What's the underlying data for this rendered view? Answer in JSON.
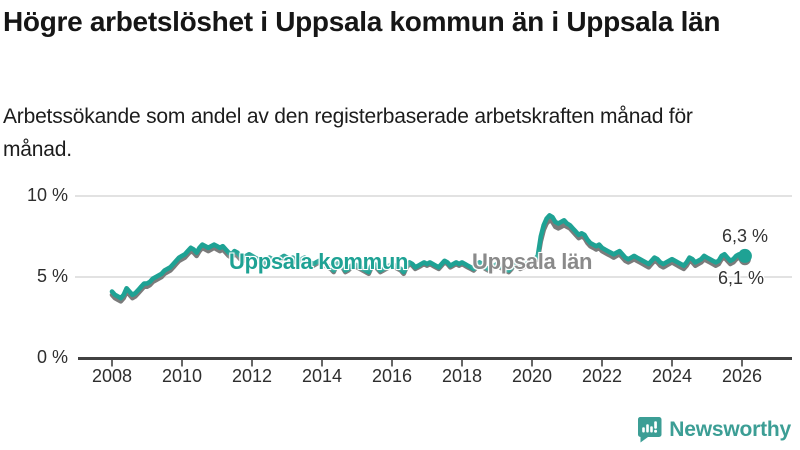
{
  "header": {
    "title": "Högre arbetslöshet i Uppsala kommun än i Uppsala län",
    "subtitle": "Arbetssökande som andel av den registerbaserade arbetskraften månad för månad."
  },
  "chart_data": {
    "type": "line",
    "x_start": "2008-01",
    "x_end": "2026-02",
    "x_frequency": "monthly",
    "ylim": [
      0,
      10.8
    ],
    "grid": "horizontal",
    "unit": "%",
    "y_ticks": [
      {
        "label": "10 %",
        "value": 10
      },
      {
        "label": "5 %",
        "value": 5
      },
      {
        "label": "0 %",
        "value": 0
      }
    ],
    "x_ticks": [
      {
        "label": "2008",
        "year": 2008
      },
      {
        "label": "2010",
        "year": 2010
      },
      {
        "label": "2012",
        "year": 2012
      },
      {
        "label": "2014",
        "year": 2014
      },
      {
        "label": "2016",
        "year": 2016
      },
      {
        "label": "2018",
        "year": 2018
      },
      {
        "label": "2020",
        "year": 2020
      },
      {
        "label": "2022",
        "year": 2022
      },
      {
        "label": "2024",
        "year": 2024
      },
      {
        "label": "2026",
        "year": 2026
      }
    ],
    "series": [
      {
        "name": "Uppsala kommun",
        "color": "#1ea294",
        "end_label": "6,3 %",
        "end_value": 6.3,
        "values": [
          4.1,
          3.9,
          3.8,
          3.7,
          3.9,
          4.3,
          4.1,
          3.9,
          4.0,
          4.2,
          4.4,
          4.6,
          4.6,
          4.7,
          4.9,
          5.0,
          5.1,
          5.2,
          5.4,
          5.5,
          5.6,
          5.8,
          6.0,
          6.2,
          6.3,
          6.4,
          6.6,
          6.8,
          6.7,
          6.5,
          6.8,
          7.0,
          6.9,
          6.8,
          6.9,
          7.0,
          6.9,
          6.8,
          6.9,
          6.7,
          6.5,
          6.4,
          6.6,
          6.5,
          6.3,
          6.2,
          6.3,
          6.4,
          6.3,
          6.2,
          6.1,
          6.0,
          5.9,
          6.0,
          6.2,
          6.1,
          6.0,
          6.1,
          6.2,
          6.3,
          6.2,
          6.1,
          6.2,
          6.0,
          5.9,
          6.1,
          6.2,
          6.0,
          5.9,
          5.8,
          5.9,
          6.0,
          5.9,
          5.8,
          5.7,
          5.6,
          5.4,
          5.8,
          5.9,
          5.7,
          5.4,
          5.5,
          5.7,
          5.8,
          5.7,
          5.6,
          5.5,
          5.4,
          5.3,
          5.7,
          5.8,
          5.6,
          5.4,
          5.5,
          5.6,
          5.7,
          5.8,
          5.7,
          5.6,
          5.5,
          5.3,
          5.7,
          5.9,
          5.8,
          5.6,
          5.7,
          5.8,
          5.9,
          5.8,
          5.9,
          5.8,
          5.7,
          5.6,
          5.8,
          6.0,
          5.9,
          5.7,
          5.8,
          5.9,
          5.8,
          5.9,
          5.8,
          5.7,
          5.6,
          5.5,
          5.7,
          5.9,
          5.8,
          5.6,
          5.5,
          5.6,
          5.7,
          5.8,
          5.7,
          5.6,
          5.5,
          5.4,
          5.6,
          5.9,
          5.8,
          5.6,
          5.7,
          5.8,
          5.9,
          6.0,
          6.1,
          6.3,
          7.5,
          8.2,
          8.6,
          8.8,
          8.7,
          8.4,
          8.3,
          8.4,
          8.5,
          8.3,
          8.2,
          8.0,
          7.8,
          7.6,
          7.7,
          7.6,
          7.3,
          7.1,
          7.0,
          6.9,
          7.0,
          6.8,
          6.7,
          6.6,
          6.5,
          6.4,
          6.5,
          6.6,
          6.4,
          6.2,
          6.1,
          6.2,
          6.3,
          6.2,
          6.1,
          6.0,
          5.9,
          5.8,
          6.0,
          6.2,
          6.1,
          5.9,
          5.8,
          5.9,
          6.0,
          6.1,
          6.0,
          5.9,
          5.8,
          5.7,
          5.9,
          6.2,
          6.1,
          5.9,
          6.0,
          6.1,
          6.3,
          6.2,
          6.1,
          6.0,
          5.9,
          6.0,
          6.3,
          6.4,
          6.2,
          6.0,
          6.1,
          6.3,
          6.4,
          6.4,
          6.3
        ]
      },
      {
        "name": "Uppsala län",
        "color": "#7b7b7b",
        "label_color": "#8a8a8a",
        "end_label": "6,1 %",
        "end_value": 6.1,
        "values": [
          3.9,
          3.7,
          3.6,
          3.5,
          3.7,
          4.1,
          3.9,
          3.7,
          3.8,
          4.0,
          4.2,
          4.4,
          4.4,
          4.5,
          4.7,
          4.8,
          4.9,
          5.0,
          5.2,
          5.3,
          5.4,
          5.6,
          5.8,
          6.0,
          6.1,
          6.2,
          6.4,
          6.6,
          6.5,
          6.3,
          6.6,
          6.8,
          6.7,
          6.6,
          6.7,
          6.8,
          6.7,
          6.6,
          6.7,
          6.5,
          6.3,
          6.2,
          6.4,
          6.3,
          6.1,
          6.0,
          6.1,
          6.2,
          6.2,
          6.1,
          6.0,
          5.9,
          5.8,
          5.9,
          6.1,
          6.0,
          5.9,
          6.0,
          6.1,
          6.2,
          6.1,
          6.0,
          6.1,
          5.9,
          5.8,
          6.0,
          6.1,
          5.9,
          5.8,
          5.7,
          5.8,
          5.9,
          5.8,
          5.7,
          5.6,
          5.5,
          5.3,
          5.7,
          5.8,
          5.6,
          5.3,
          5.4,
          5.6,
          5.7,
          5.6,
          5.5,
          5.4,
          5.3,
          5.2,
          5.6,
          5.7,
          5.5,
          5.3,
          5.4,
          5.5,
          5.6,
          5.7,
          5.6,
          5.5,
          5.4,
          5.2,
          5.6,
          5.8,
          5.7,
          5.5,
          5.6,
          5.7,
          5.8,
          5.7,
          5.8,
          5.7,
          5.6,
          5.5,
          5.7,
          5.9,
          5.8,
          5.6,
          5.7,
          5.8,
          5.7,
          5.8,
          5.7,
          5.6,
          5.5,
          5.4,
          5.6,
          5.8,
          5.7,
          5.5,
          5.4,
          5.5,
          5.6,
          5.7,
          5.6,
          5.5,
          5.4,
          5.3,
          5.5,
          5.8,
          5.7,
          5.5,
          5.6,
          5.7,
          5.8,
          5.9,
          6.0,
          6.1,
          7.2,
          7.9,
          8.3,
          8.5,
          8.4,
          8.1,
          8.0,
          8.1,
          8.2,
          8.1,
          8.0,
          7.8,
          7.6,
          7.4,
          7.5,
          7.4,
          7.1,
          6.9,
          6.8,
          6.7,
          6.8,
          6.6,
          6.5,
          6.4,
          6.3,
          6.2,
          6.3,
          6.4,
          6.2,
          6.0,
          5.9,
          6.0,
          6.1,
          6.0,
          5.9,
          5.8,
          5.7,
          5.6,
          5.8,
          6.0,
          5.9,
          5.7,
          5.6,
          5.7,
          5.8,
          5.9,
          5.8,
          5.7,
          5.6,
          5.5,
          5.7,
          6.0,
          5.9,
          5.7,
          5.8,
          5.9,
          6.1,
          6.0,
          5.9,
          5.8,
          5.7,
          5.8,
          6.1,
          6.2,
          6.0,
          5.8,
          5.9,
          6.1,
          6.2,
          6.2,
          6.1
        ]
      }
    ]
  },
  "footer": {
    "brand": "Newsworthy",
    "logo_icon": "bar-chart-speech-bubble-icon",
    "brand_color": "#3c9e95"
  },
  "colors": {
    "accent_teal": "#1ea294",
    "line_gray": "#7b7b7b",
    "label_gray": "#8a8a8a",
    "grid": "#d9d9d9",
    "axis": "#414141",
    "tick_text": "#2e2e2e"
  }
}
